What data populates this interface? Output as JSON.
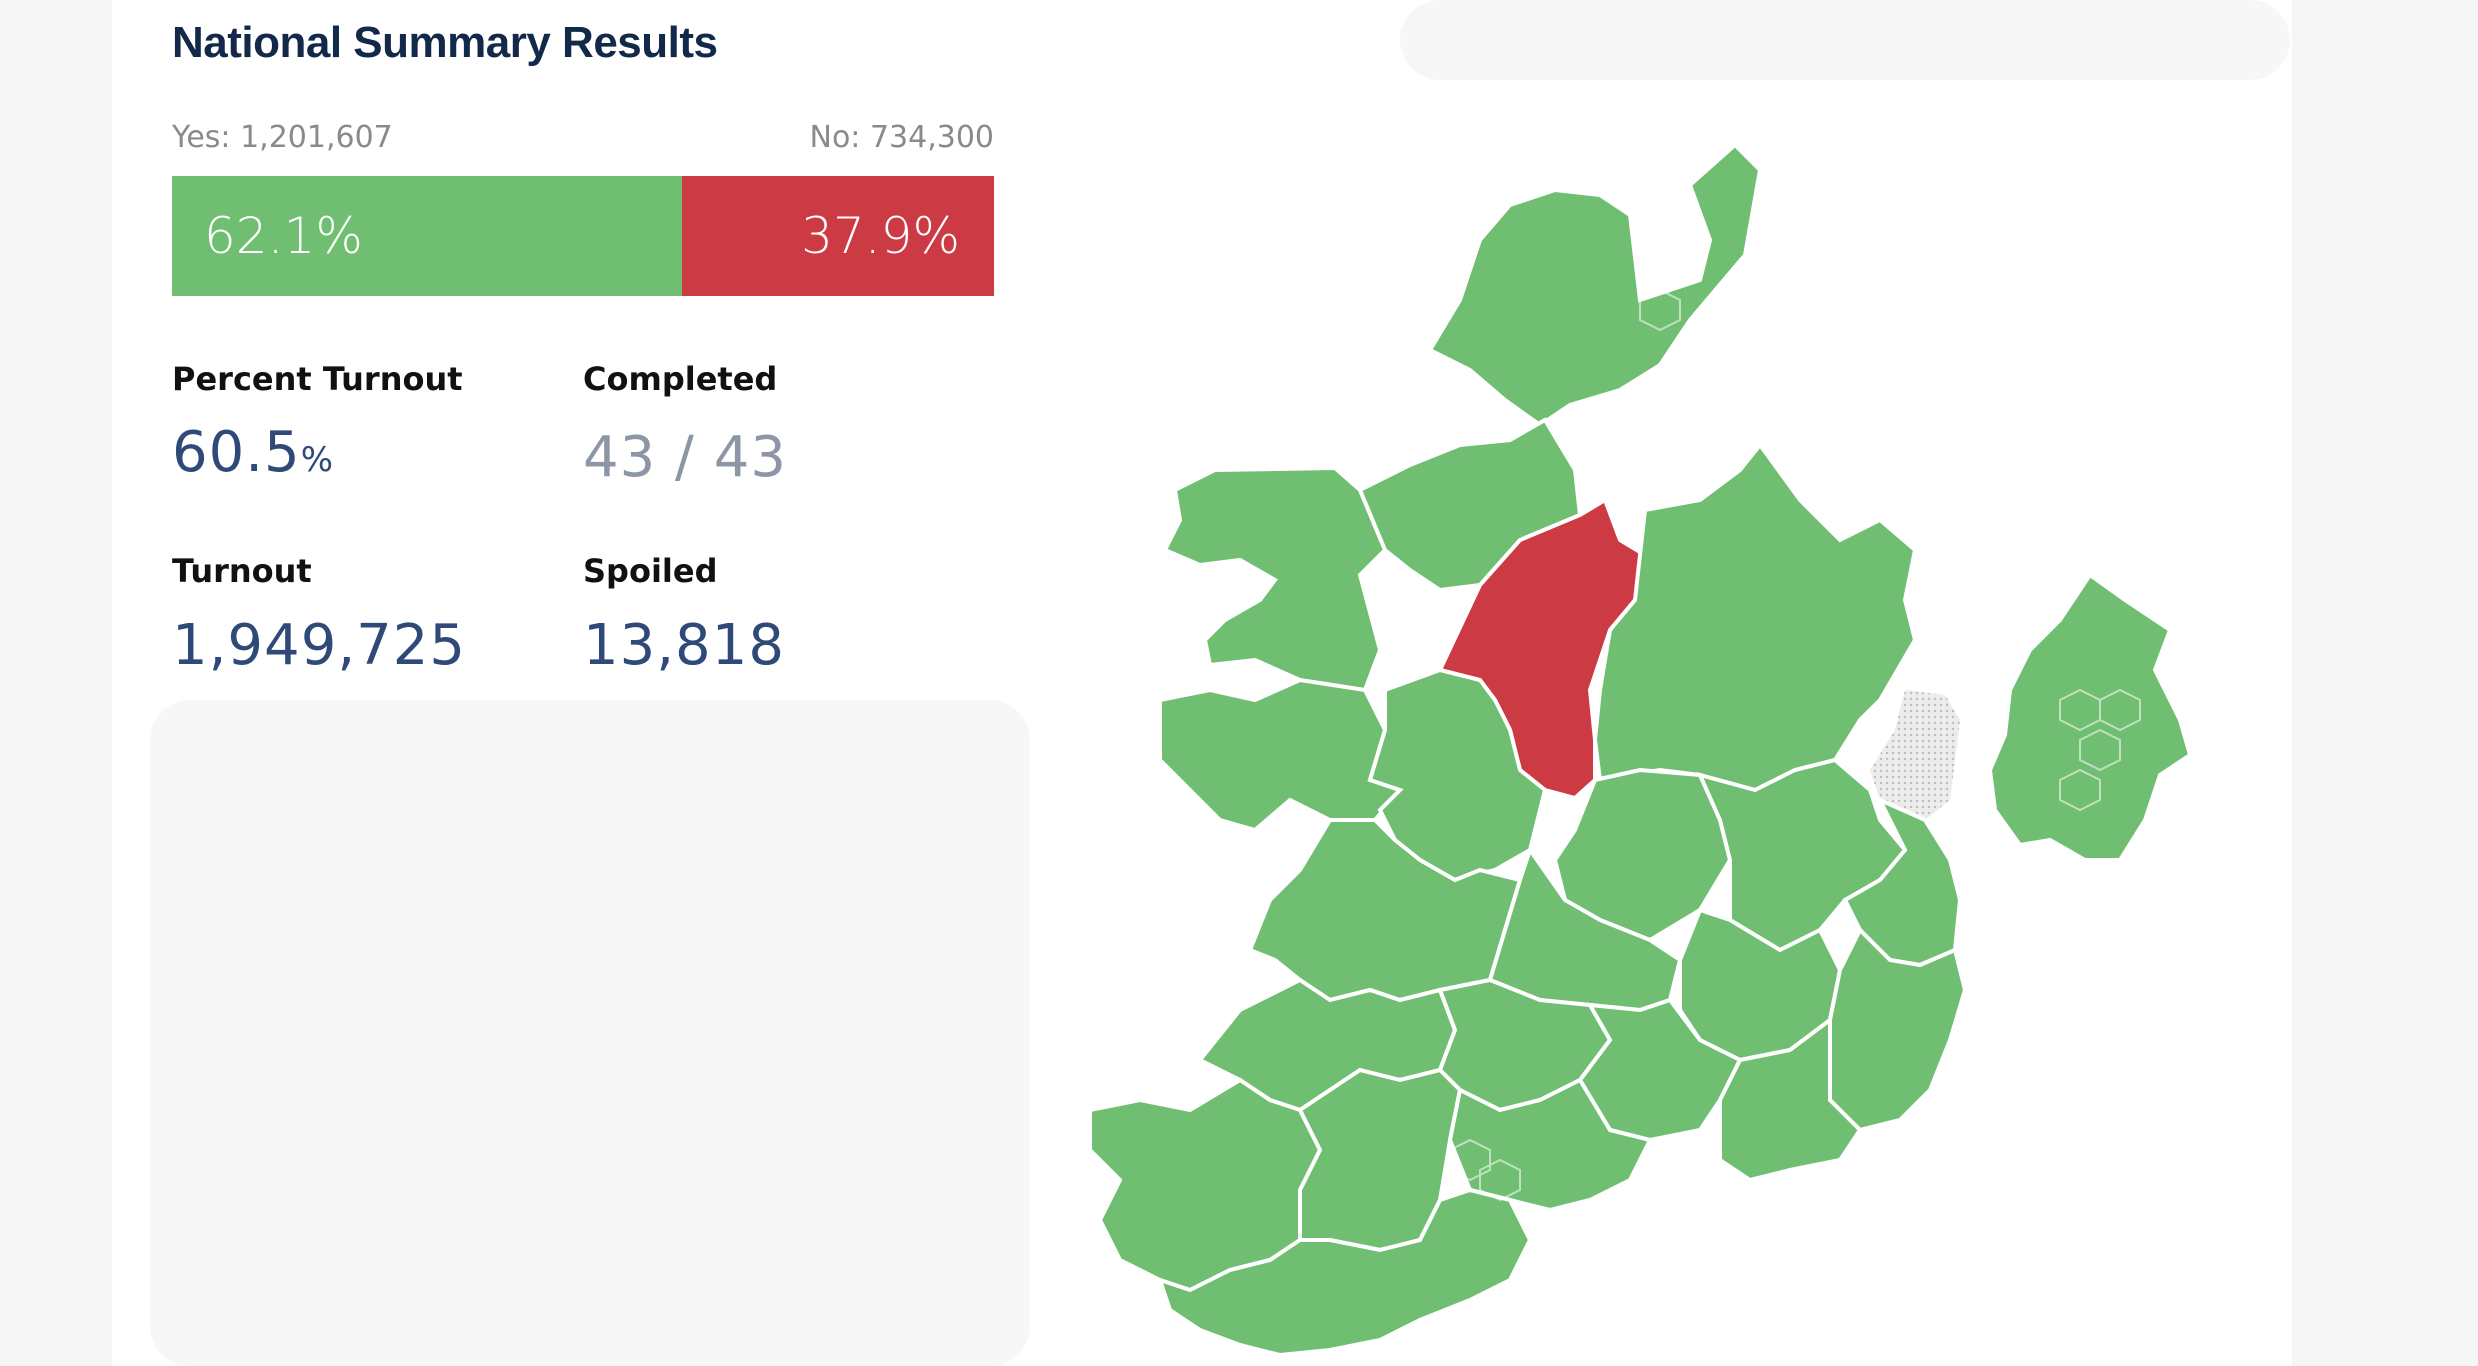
{
  "title": "National Summary Results",
  "result": {
    "yes_label": "Yes: 1,201,607",
    "no_label": "No: 734,300",
    "yes_percent_text": "62.1%",
    "no_percent_text": "37.9%",
    "yes_fraction": 0.621,
    "yes_color": "#6fbe72",
    "no_color": "#cc3a44"
  },
  "stats": {
    "percent_turnout_label": "Percent Turnout",
    "percent_turnout_value": "60.5",
    "percent_turnout_unit": "%",
    "completed_label": "Completed",
    "completed_value": "43 / 43",
    "turnout_label": "Turnout",
    "turnout_value": "1,949,725",
    "spoiled_label": "Spoiled",
    "spoiled_value": "13,818"
  },
  "map": {
    "colors": {
      "yes": "#6fbe72",
      "no": "#cc3a44",
      "no_data": "#e0e0e0",
      "border": "#ffffff"
    }
  }
}
